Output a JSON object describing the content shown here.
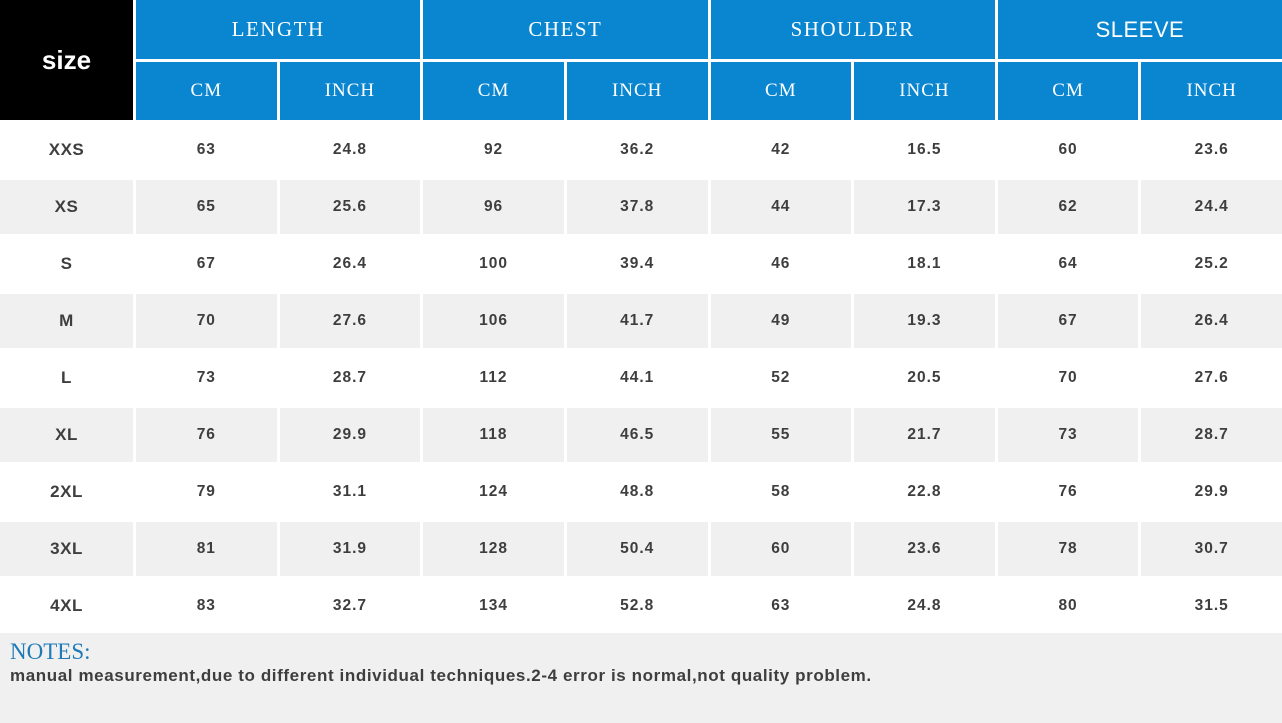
{
  "chart_data": {
    "type": "table",
    "title": "size",
    "column_groups": [
      "LENGTH",
      "CHEST",
      "SHOULDER",
      "SLEEVE"
    ],
    "unit_headers": [
      "CM",
      "INCH",
      "CM",
      "INCH",
      "CM",
      "INCH",
      "CM",
      "INCH"
    ],
    "rows": [
      {
        "size": "XXS",
        "values": [
          "63",
          "24.8",
          "92",
          "36.2",
          "42",
          "16.5",
          "60",
          "23.6"
        ]
      },
      {
        "size": "XS",
        "values": [
          "65",
          "25.6",
          "96",
          "37.8",
          "44",
          "17.3",
          "62",
          "24.4"
        ]
      },
      {
        "size": "S",
        "values": [
          "67",
          "26.4",
          "100",
          "39.4",
          "46",
          "18.1",
          "64",
          "25.2"
        ]
      },
      {
        "size": "M",
        "values": [
          "70",
          "27.6",
          "106",
          "41.7",
          "49",
          "19.3",
          "67",
          "26.4"
        ]
      },
      {
        "size": "L",
        "values": [
          "73",
          "28.7",
          "112",
          "44.1",
          "52",
          "20.5",
          "70",
          "27.6"
        ]
      },
      {
        "size": "XL",
        "values": [
          "76",
          "29.9",
          "118",
          "46.5",
          "55",
          "21.7",
          "73",
          "28.7"
        ]
      },
      {
        "size": "2XL",
        "values": [
          "79",
          "31.1",
          "124",
          "48.8",
          "58",
          "22.8",
          "76",
          "29.9"
        ]
      },
      {
        "size": "3XL",
        "values": [
          "81",
          "31.9",
          "128",
          "50.4",
          "60",
          "23.6",
          "78",
          "30.7"
        ]
      },
      {
        "size": "4XL",
        "values": [
          "83",
          "32.7",
          "134",
          "52.8",
          "63",
          "24.8",
          "80",
          "31.5"
        ]
      }
    ],
    "layout": {
      "striped_rows": "even rows gray",
      "header_style": "blue with white gaps"
    }
  },
  "notes": {
    "title": "NOTES:",
    "text": "manual measurement,due to different individual techniques.2-4 error is normal,not quality problem."
  },
  "colors": {
    "header_blue": "#0a86d1",
    "stripe_gray": "#f0f0f0",
    "notes_bg": "#f0f0f0",
    "notes_title_blue": "#1f7ab8",
    "text_dark": "#3e3e3e",
    "size_cell_black": "#000000"
  }
}
